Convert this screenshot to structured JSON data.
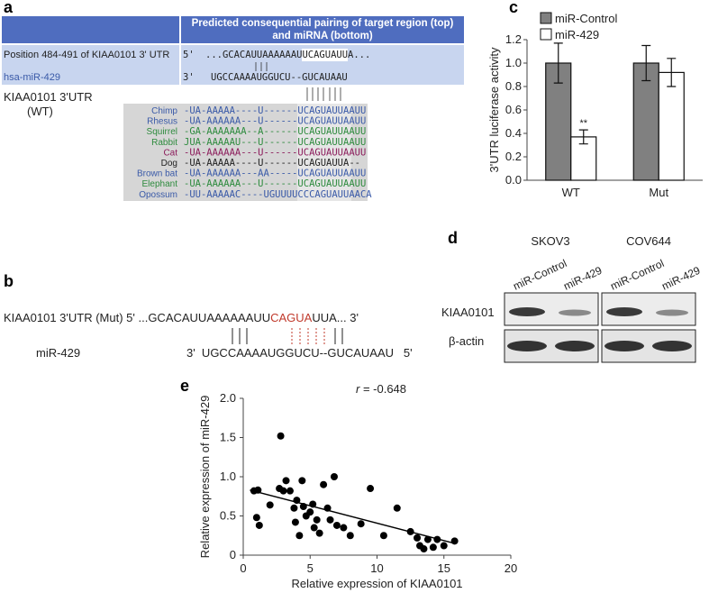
{
  "panel_a": {
    "label": "a",
    "header_lines": [
      "Predicted consequential pairing of target region (top)",
      "and miRNA (bottom)"
    ],
    "target_name": "Position 484-491 of KIAA0101 3' UTR",
    "target_end": "5'",
    "target_seq": "...GCACAUUAAAAAAUUCAGUAUUA...",
    "mirna_name": "hsa-miR-429",
    "mirna_end": "3'",
    "mirna_seq": "UGCCAAAAUGGUCU--GUCAUAAU",
    "utr_lines": [
      "KIAA0101 3'UTR",
      "(WT)"
    ],
    "alignment": [
      {
        "species": "Chimp",
        "color": "#3a5aa8",
        "seq": "-UA-AAAAA----U------UCAGUAUUAAUU"
      },
      {
        "species": "Rhesus",
        "color": "#3a5aa8",
        "seq": "-UA-AAAAAA---U------UCAGUAUUAAUU"
      },
      {
        "species": "Squirrel",
        "color": "#2e8b3e",
        "seq": "-GA-AAAAAAA--A------UCAGUAUUAAUU"
      },
      {
        "species": "Rabbit",
        "color": "#2e8b3e",
        "seq": "JUA-AAAAAU---U------UCAGUAUUAAUU"
      },
      {
        "species": "Cat",
        "color": "#8b1a5a",
        "seq": "-UA-AAAAAA---U------UCAGUAUUAAUU"
      },
      {
        "species": "Dog",
        "color": "#222222",
        "seq": "-UA-AAAAA----U------UCAGUAUUA--"
      },
      {
        "species": "Brown bat",
        "color": "#3a5aa8",
        "seq": "-UA-AAAAAA---AA-----UCAGUAUUAAUU"
      },
      {
        "species": "Elephant",
        "color": "#2e8b3e",
        "seq": "-UA-AAAAAA---U------UCAGUAUUAAUU"
      },
      {
        "species": "Opossum",
        "color": "#3a5aa8",
        "seq": "-UU-AAAAAC----UGUUUUCCCAGUAUUAACA"
      }
    ]
  },
  "panel_b": {
    "label": "b",
    "target_name": "KIAA0101 3'UTR (Mut)",
    "target_start": "5' ...GCACAUUAAAAAAUU",
    "mutation": "CAGUA",
    "target_rest": "UUA... 3'",
    "mirna_name": "miR-429",
    "mirna_seq": "3'  UGCCAAAAUGGUCU--GUCAUAAU   5'"
  },
  "panel_d": {
    "label": "d",
    "cell_lines": [
      "SKOV3",
      "COV644"
    ],
    "lanes": [
      "miR-Control",
      "miR-429",
      "miR-Control",
      "miR-429"
    ],
    "proteins": [
      "KIAA0101",
      "β-actin"
    ]
  },
  "chart_data": [
    {
      "type": "bar",
      "panel": "c",
      "y_label": "3'UTR luciferase activity",
      "categories": [
        "WT",
        "Mut"
      ],
      "series": [
        {
          "name": "miR-Control",
          "color": "#808080",
          "values": [
            1.0,
            1.0
          ],
          "errors": [
            0.17,
            0.15
          ]
        },
        {
          "name": "miR-429",
          "color": "#ffffff",
          "values": [
            0.37,
            0.92
          ],
          "errors": [
            0.06,
            0.12
          ]
        }
      ],
      "annotations": [
        {
          "text": "**",
          "series": 1,
          "category": 0
        }
      ],
      "ylim": [
        0,
        1.2
      ],
      "yticks": [
        {
          "value": 0,
          "label": "0.0"
        },
        0.2,
        0.4,
        0.6,
        0.8,
        {
          "value": 1,
          "label": "1.0"
        },
        1.2
      ],
      "legend": "top-left"
    },
    {
      "type": "scatter",
      "panel": "e",
      "x_label": "Relative expression of KIAA0101",
      "y_label": "Relative expression of miR-429",
      "annotation": {
        "symbol": "r",
        "text": " = -0.648"
      },
      "x": [
        0.8,
        1.0,
        1.2,
        1.1,
        2.0,
        2.8,
        2.7,
        3.0,
        3.2,
        3.5,
        3.8,
        3.9,
        4.0,
        4.2,
        4.4,
        4.5,
        4.7,
        5.0,
        5.2,
        5.3,
        5.5,
        5.7,
        6.0,
        6.3,
        6.5,
        6.8,
        7.0,
        7.5,
        8.0,
        8.8,
        9.5,
        10.5,
        11.5,
        12.5,
        13.0,
        13.2,
        13.5,
        13.8,
        14.2,
        14.5,
        15.0,
        15.8
      ],
      "values": [
        0.82,
        0.48,
        0.38,
        0.83,
        0.64,
        1.52,
        0.85,
        0.82,
        0.95,
        0.82,
        0.6,
        0.42,
        0.7,
        0.25,
        0.95,
        0.62,
        0.5,
        0.55,
        0.65,
        0.35,
        0.45,
        0.28,
        0.9,
        0.6,
        0.45,
        1.0,
        0.38,
        0.35,
        0.25,
        0.4,
        0.85,
        0.25,
        0.6,
        0.3,
        0.22,
        0.12,
        0.08,
        0.2,
        0.1,
        0.2,
        0.12,
        0.18
      ],
      "color": "#000000",
      "trendline": {
        "x": [
          0.5,
          15.8
        ],
        "y": [
          0.83,
          0.15
        ]
      },
      "xlim": [
        0,
        20
      ],
      "xticks": [
        0,
        5,
        10,
        15,
        20
      ],
      "ylim": [
        0,
        2
      ],
      "yticks": [
        0,
        0.5,
        {
          "value": 1,
          "label": "1.0"
        },
        1.5,
        {
          "value": 2,
          "label": "2.0"
        }
      ]
    }
  ]
}
